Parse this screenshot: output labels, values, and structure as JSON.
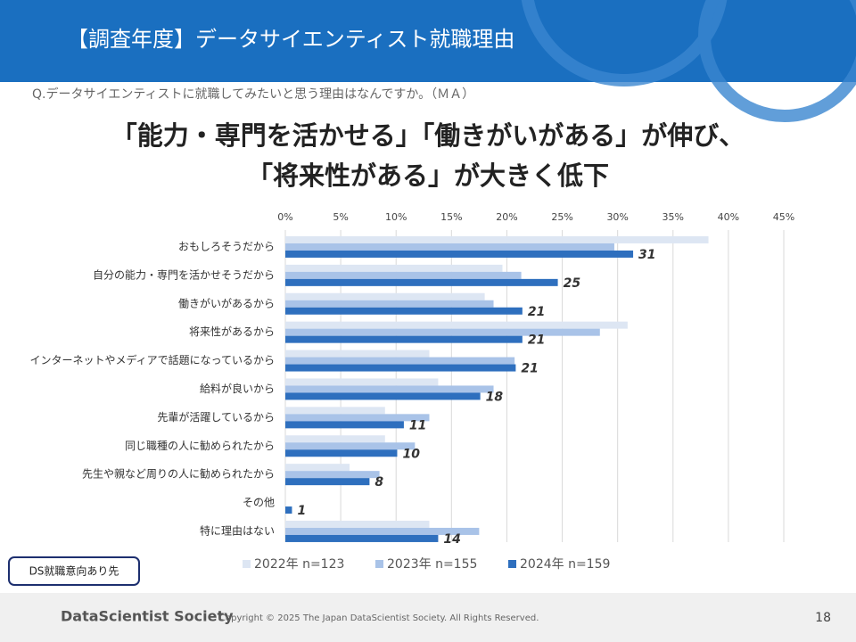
{
  "header": {
    "title": "【調査年度】データサイエンティスト就職理由"
  },
  "question": "Q.データサイエンティストに就職してみたいと思う理由はなんですか。（ＭＡ）",
  "headline": [
    "「能力・専門を活かせる」「働きがいがある」が伸び、",
    "「将来性がある」が大きく低下"
  ],
  "badge": "DS就職意向あり先",
  "footer": {
    "logo": "DataScientist Society",
    "copyright": "Copyright © 2025  The Japan DataScientist Society. All Rights Reserved.",
    "page": "18"
  },
  "chart_data": {
    "type": "hbar",
    "categories": [
      "おもしろそうだから",
      "自分の能力・専門を活かせそうだから",
      "働きがいがあるから",
      "将来性があるから",
      "インターネットやメディアで話題になっているから",
      "給料が良いから",
      "先輩が活躍しているから",
      "同じ職種の人に勧められたから",
      "先生や親など周りの人に勧められたから",
      "その他",
      "特に理由はない"
    ],
    "series": [
      {
        "name": "2022年 n=123",
        "color": "#dde6f3",
        "values": [
          38.2,
          19.6,
          18,
          30.9,
          13,
          13.8,
          9,
          9,
          5.8,
          0,
          13
        ]
      },
      {
        "name": "2023年 n=155",
        "color": "#a9c3e8",
        "values": [
          29.7,
          21.3,
          18.8,
          28.4,
          20.7,
          18.8,
          13,
          11.7,
          8.5,
          0,
          17.5
        ]
      },
      {
        "name": "2024年 n=159",
        "color": "#2e6fbe",
        "values": [
          31.4,
          24.6,
          21.4,
          21.4,
          20.8,
          17.6,
          10.7,
          10.1,
          7.6,
          0.6,
          13.8
        ],
        "value_labels": [
          "31",
          "25",
          "21",
          "21",
          "21",
          "18",
          "11",
          "10",
          "8",
          "1",
          "14"
        ]
      }
    ],
    "xlim": [
      0,
      45
    ],
    "xticks": [
      {
        "value": 0,
        "label": "0%"
      },
      {
        "value": 5,
        "label": "5%"
      },
      {
        "value": 10,
        "label": "10%"
      },
      {
        "value": 15,
        "label": "15%"
      },
      {
        "value": 20,
        "label": "20%"
      },
      {
        "value": 25,
        "label": "25%"
      },
      {
        "value": 30,
        "label": "30%"
      },
      {
        "value": 35,
        "label": "35%"
      },
      {
        "value": 40,
        "label": "40%"
      },
      {
        "value": 45,
        "label": "45%"
      }
    ],
    "grid": true,
    "legend": "bottom"
  }
}
